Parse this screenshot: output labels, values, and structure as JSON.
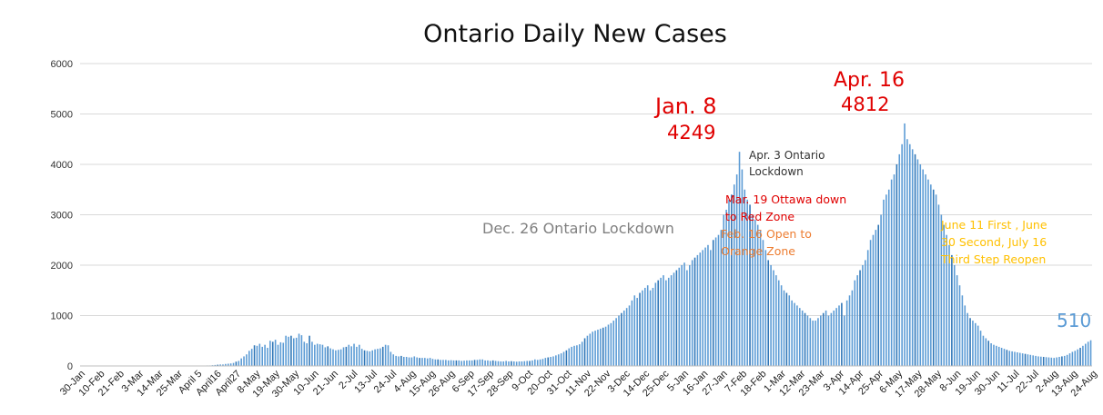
{
  "chart_data": {
    "type": "bar",
    "title": "Ontario Daily New Cases",
    "xlabel": "",
    "ylabel": "",
    "ylim": [
      0,
      6000
    ],
    "y_ticks": [
      "0",
      "1000",
      "2000",
      "3000",
      "4000",
      "5000",
      "6000"
    ],
    "grid": true,
    "legend": "none",
    "bar_color": "#5b9bd5",
    "highlight_color": "#2e75b6",
    "x_tick_labels": [
      "30-Jan",
      "10-Feb",
      "21-Feb",
      "3-Mar",
      "14-Mar",
      "25-Mar",
      "April 5",
      "April16",
      "April27",
      "8-May",
      "19-May",
      "30-May",
      "10-Jun",
      "21-Jun",
      "2-Jul",
      "13-Jul",
      "24-Jul",
      "4-Aug",
      "15-Aug",
      "26-Aug",
      "6-Sep",
      "17-Sep",
      "28-Sep",
      "9-Oct",
      "20-Oct",
      "31-Oct",
      "11-Nov",
      "22-Nov",
      "3-Dec",
      "14-Dec",
      "25-Dec",
      "5-Jan",
      "16-Jan",
      "27-Jan",
      "7-Feb",
      "18-Feb",
      "1-Mar",
      "12-Mar",
      "23-Mar",
      "3-Apr",
      "14-Apr",
      "25-Apr",
      "6-May",
      "17-May",
      "28-May",
      "8-Jun",
      "19-Jun",
      "30-Jun",
      "11-Jul",
      "22-Jul",
      "2-Aug",
      "13-Aug",
      "24-Aug"
    ],
    "series": [
      {
        "values": [
          5,
          0,
          0,
          0,
          5,
          0,
          0,
          0,
          0,
          0,
          0,
          0,
          0,
          0,
          0,
          0,
          0,
          0,
          0,
          0,
          0,
          0,
          0,
          0,
          0,
          0,
          0,
          0,
          0,
          0,
          0,
          0,
          0,
          0,
          0,
          0,
          0,
          0,
          0,
          0,
          0,
          0,
          0,
          0,
          5,
          5,
          5,
          5,
          10,
          10,
          15,
          20,
          25,
          30,
          30,
          40,
          45,
          50,
          60,
          85,
          100,
          150,
          190,
          230,
          300,
          340,
          410,
          400,
          440,
          380,
          420,
          360,
          500,
          480,
          520,
          420,
          470,
          460,
          600,
          580,
          600,
          550,
          560,
          640,
          610,
          480,
          450,
          600,
          480,
          420,
          440,
          430,
          420,
          370,
          390,
          350,
          330,
          310,
          320,
          330,
          370,
          380,
          420,
          390,
          440,
          380,
          420,
          340,
          310,
          300,
          290,
          310,
          330,
          340,
          350,
          380,
          420,
          410,
          280,
          230,
          200,
          190,
          200,
          180,
          180,
          170,
          170,
          190,
          170,
          160,
          160,
          160,
          150,
          160,
          140,
          130,
          130,
          120,
          120,
          120,
          110,
          115,
          110,
          110,
          110,
          100,
          105,
          110,
          110,
          110,
          120,
          120,
          130,
          130,
          110,
          110,
          100,
          110,
          100,
          95,
          90,
          90,
          100,
          90,
          95,
          90,
          85,
          90,
          90,
          95,
          100,
          100,
          110,
          130,
          120,
          130,
          140,
          160,
          170,
          180,
          190,
          210,
          230,
          250,
          280,
          310,
          350,
          380,
          400,
          410,
          430,
          480,
          550,
          600,
          640,
          680,
          700,
          720,
          740,
          760,
          780,
          820,
          850,
          900,
          950,
          1000,
          1050,
          1100,
          1150,
          1200,
          1300,
          1400,
          1350,
          1450,
          1500,
          1550,
          1600,
          1500,
          1550,
          1650,
          1700,
          1750,
          1800,
          1700,
          1750,
          1800,
          1850,
          1900,
          1950,
          2000,
          2050,
          1900,
          2000,
          2100,
          2150,
          2200,
          2250,
          2300,
          2350,
          2400,
          2300,
          2500,
          2550,
          2600,
          2700,
          3000,
          3100,
          3300,
          3400,
          3600,
          3800,
          4249,
          3900,
          3500,
          3300,
          3200,
          3000,
          2900,
          2800,
          2700,
          2500,
          2300,
          2100,
          2000,
          1900,
          1800,
          1700,
          1600,
          1500,
          1450,
          1400,
          1300,
          1250,
          1200,
          1150,
          1100,
          1050,
          1000,
          950,
          900,
          900,
          950,
          1000,
          1050,
          1100,
          1000,
          1050,
          1100,
          1150,
          1200,
          1250,
          1000,
          1300,
          1400,
          1500,
          1700,
          1800,
          1900,
          2000,
          2100,
          2300,
          2500,
          2600,
          2700,
          2800,
          3000,
          3300,
          3400,
          3500,
          3700,
          3800,
          4000,
          4200,
          4400,
          4812,
          4500,
          4400,
          4300,
          4200,
          4100,
          4000,
          3900,
          3800,
          3700,
          3600,
          3500,
          3400,
          3200,
          3000,
          2800,
          2600,
          2400,
          2200,
          2000,
          1800,
          1600,
          1400,
          1200,
          1050,
          950,
          900,
          850,
          800,
          700,
          600,
          550,
          500,
          450,
          420,
          400,
          380,
          360,
          340,
          320,
          300,
          290,
          280,
          270,
          260,
          250,
          240,
          230,
          220,
          210,
          200,
          190,
          185,
          180,
          175,
          170,
          165,
          160,
          170,
          180,
          190,
          200,
          220,
          250,
          280,
          300,
          330,
          360,
          400,
          440,
          480,
          510
        ]
      }
    ],
    "annotations": [
      {
        "text": "Jan. 8",
        "color": "#e00000"
      },
      {
        "text": "4249",
        "color": "#e00000"
      },
      {
        "text": "Apr. 16",
        "color": "#e00000"
      },
      {
        "text": "4812",
        "color": "#e00000"
      },
      {
        "text": "Apr. 3 Ontario",
        "color": "#333333"
      },
      {
        "text": "Lockdown",
        "color": "#333333"
      },
      {
        "text": "Mar. 19 Ottawa down",
        "color": "#e00000"
      },
      {
        "text": "to Red Zone",
        "color": "#e00000"
      },
      {
        "text": "Feb. 16 Open to",
        "color": "#ed7d31"
      },
      {
        "text": "Orange Zone",
        "color": "#ed7d31"
      },
      {
        "text": "Dec. 26 Ontario Lockdown",
        "color": "#808080"
      },
      {
        "text": "June 11 First , June",
        "color": "#ffc000"
      },
      {
        "text": "30 Second, July 16",
        "color": "#ffc000"
      },
      {
        "text": "Third Step Reopen",
        "color": "#ffc000"
      },
      {
        "text": "510",
        "color": "#5b9bd5"
      }
    ]
  }
}
